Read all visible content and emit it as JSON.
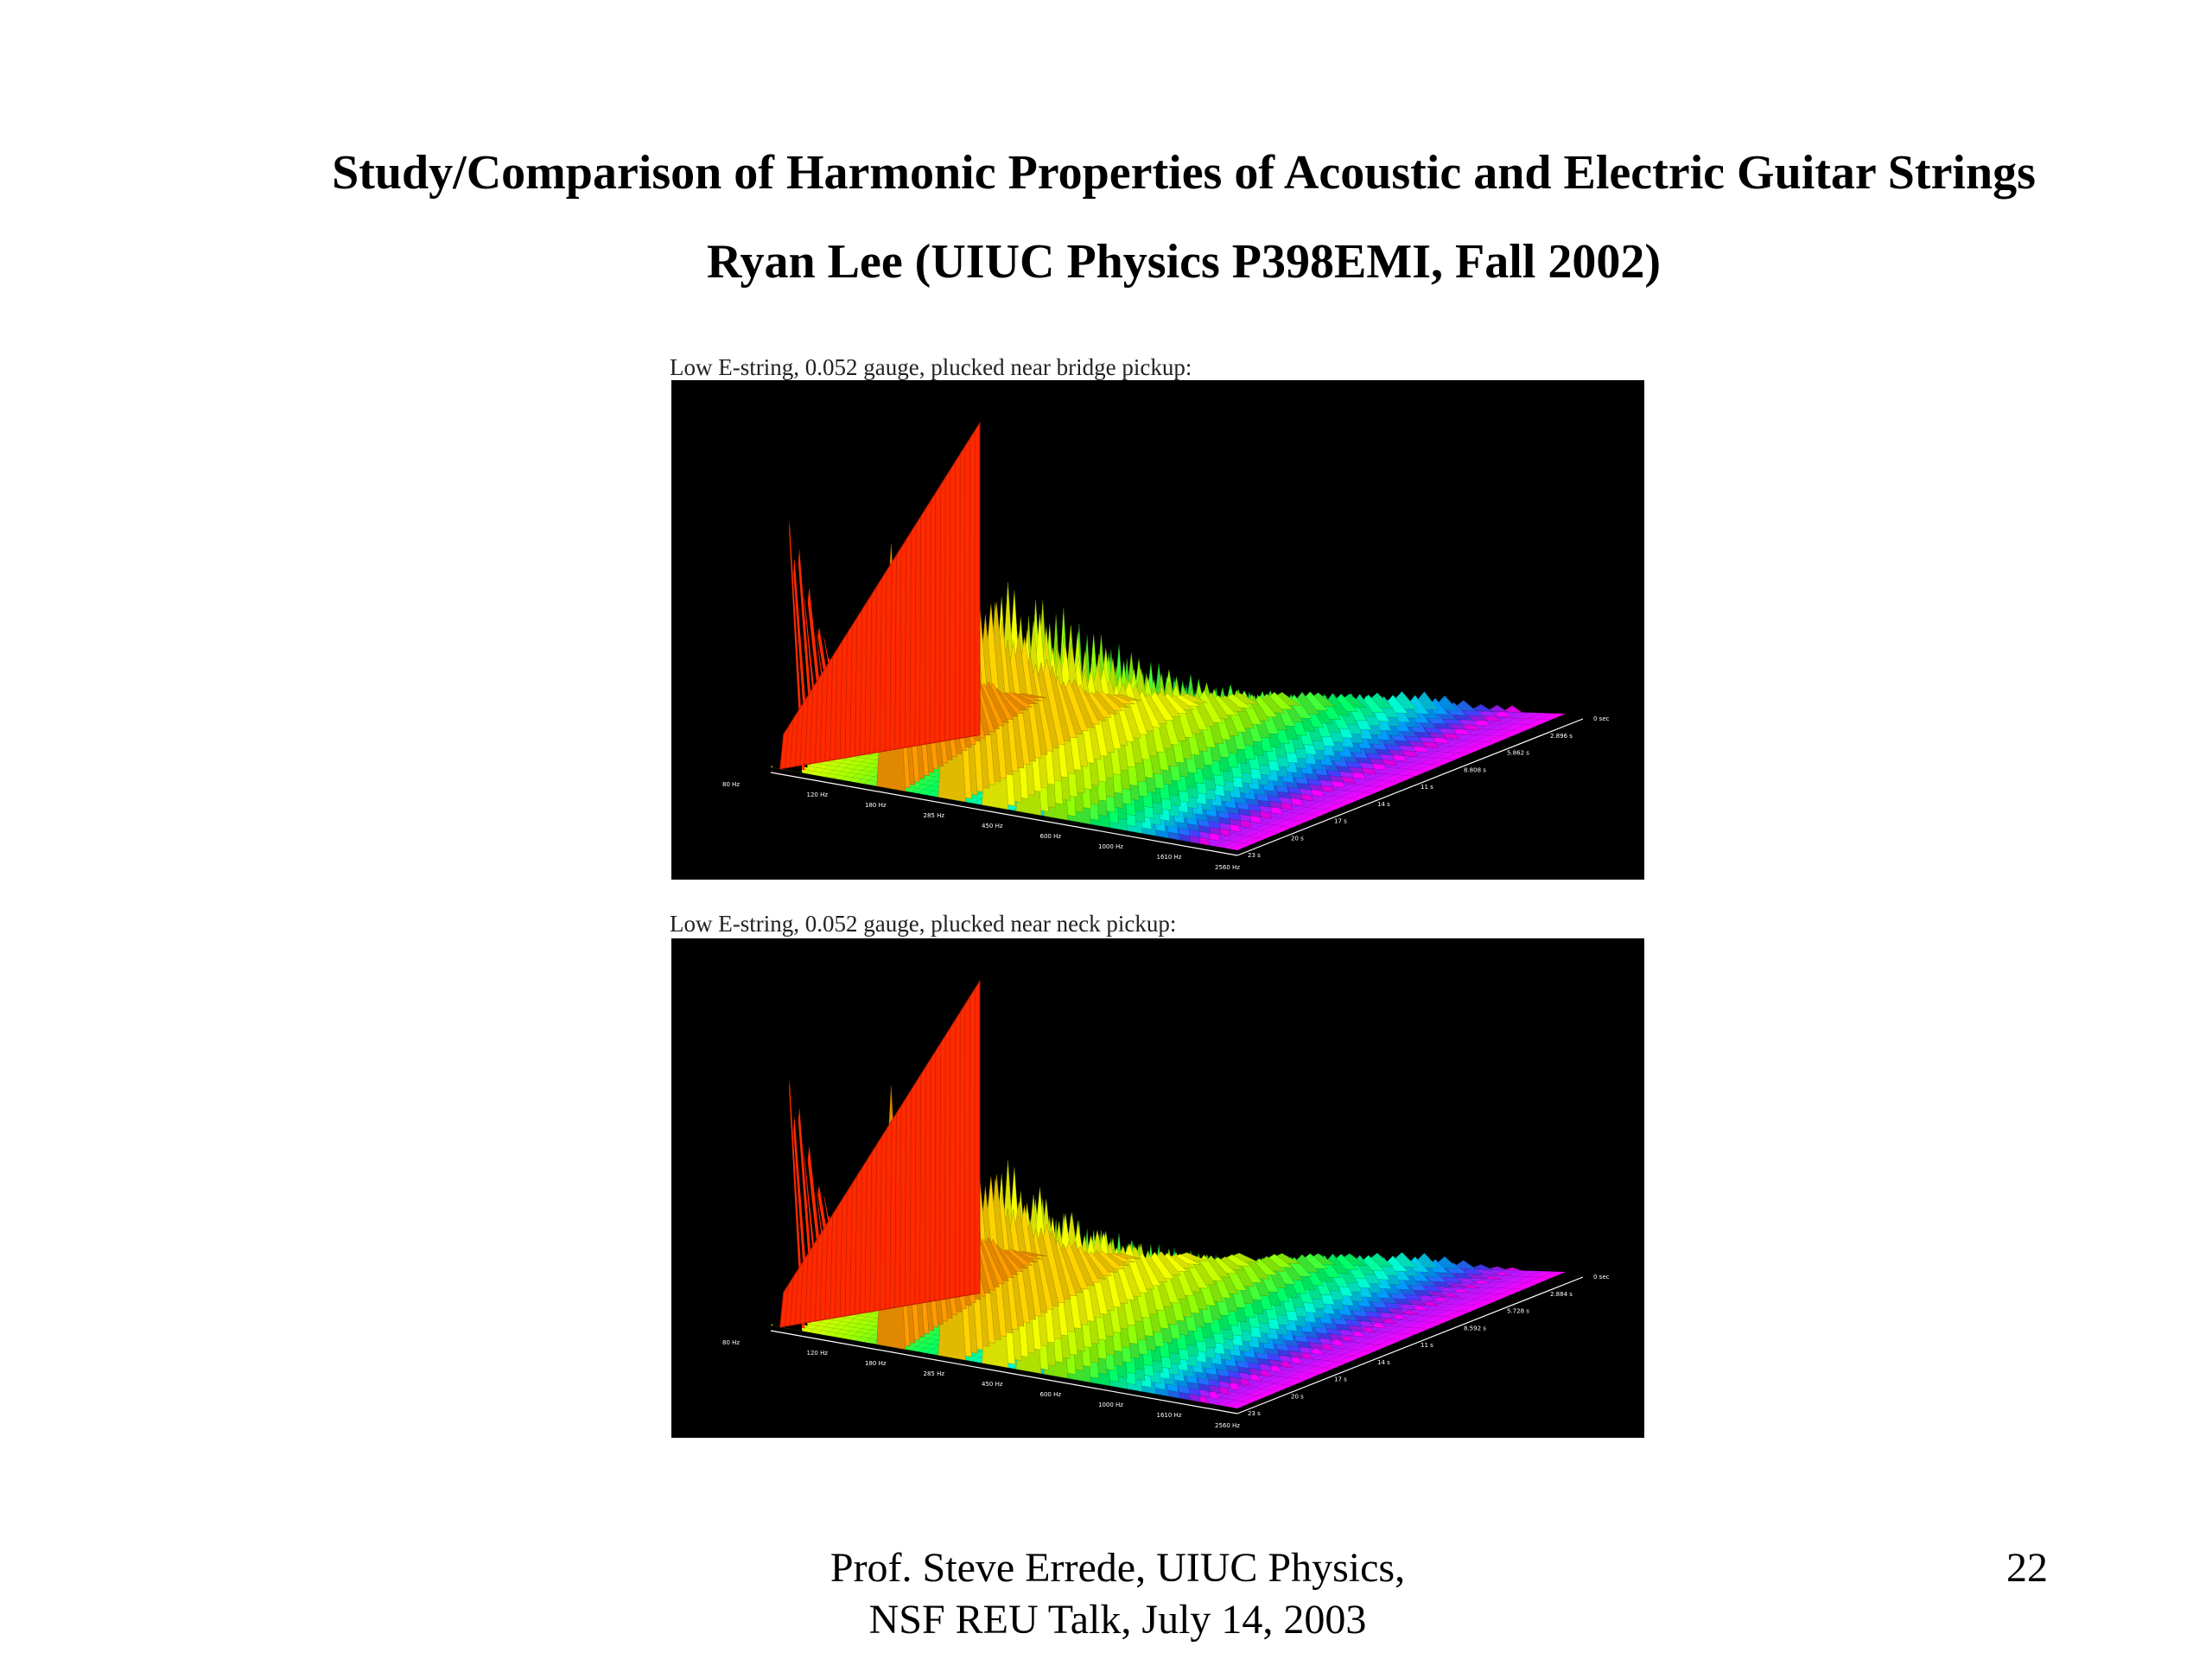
{
  "slide": {
    "title": "Study/Comparison of Harmonic Properties of Acoustic and Electric Guitar Strings",
    "subtitle": "Ryan Lee (UIUC Physics P398EMI, Fall 2002)",
    "footer_line1": "Prof. Steve Errede, UIUC Physics,",
    "footer_line2": "NSF REU Talk, July 14, 2003",
    "page_number": "22"
  },
  "figures": [
    {
      "caption": "Low E-string, 0.052 gauge, plucked near bridge pickup:",
      "freq_ticks": [
        "80 Hz",
        "120 Hz",
        "180 Hz",
        "285 Hz",
        "450 Hz",
        "600 Hz",
        "1000 Hz",
        "1610 Hz",
        "2560 Hz"
      ],
      "time_ticks": [
        "0 sec",
        "2.896 s",
        "5.862 s",
        "8.808 s",
        "11 s",
        "14 s",
        "17 s",
        "20 s",
        "23 s"
      ]
    },
    {
      "caption": "Low E-string, 0.052 gauge, plucked near neck pickup:",
      "freq_ticks": [
        "80 Hz",
        "120 Hz",
        "180 Hz",
        "285 Hz",
        "450 Hz",
        "600 Hz",
        "1000 Hz",
        "1610 Hz",
        "2560 Hz"
      ],
      "time_ticks": [
        "0 sec",
        "2.884 s",
        "5.728 s",
        "8.592 s",
        "11 s",
        "14 s",
        "17 s",
        "20 s",
        "23 s"
      ]
    }
  ],
  "chart_data": [
    {
      "type": "area",
      "title": "Low E-string, 0.052 gauge, plucked near bridge pickup:",
      "x_axis": "frequency (log scale)",
      "x_ticks": [
        "80 Hz",
        "120 Hz",
        "180 Hz",
        "285 Hz",
        "450 Hz",
        "600 Hz",
        "1000 Hz",
        "1610 Hz",
        "2560 Hz"
      ],
      "y_axis": "time",
      "y_ticks": [
        "0 sec",
        "2.896 s",
        "5.862 s",
        "8.808 s",
        "11 s",
        "14 s",
        "17 s",
        "20 s",
        "23 s"
      ],
      "colormap": [
        "#ff2a00",
        "#ff8c00",
        "#ffff00",
        "#a0ff00",
        "#00ff60",
        "#00ffd0",
        "#00a0ff",
        "#4040ff",
        "#ff00ff"
      ],
      "background": "#000000",
      "harmonic_peak_heights": [
        1.0,
        0.92,
        0.96,
        0.88,
        0.82,
        0.78,
        0.72,
        0.62,
        0.58,
        0.52,
        0.44,
        0.32,
        0.22,
        0.14,
        0.12,
        0.1
      ]
    },
    {
      "type": "area",
      "title": "Low E-string, 0.052 gauge, plucked near neck pickup:",
      "x_axis": "frequency (log scale)",
      "x_ticks": [
        "80 Hz",
        "120 Hz",
        "180 Hz",
        "285 Hz",
        "450 Hz",
        "600 Hz",
        "1000 Hz",
        "1610 Hz",
        "2560 Hz"
      ],
      "y_axis": "time",
      "y_ticks": [
        "0 sec",
        "2.884 s",
        "5.728 s",
        "8.592 s",
        "11 s",
        "14 s",
        "17 s",
        "20 s",
        "23 s"
      ],
      "colormap": [
        "#ff2a00",
        "#ff8c00",
        "#ffff00",
        "#a0ff00",
        "#00ff60",
        "#00ffd0",
        "#00a0ff",
        "#4040ff",
        "#ff00ff"
      ],
      "background": "#000000",
      "harmonic_peak_heights": [
        1.0,
        0.98,
        0.88,
        0.8,
        0.66,
        0.6,
        0.58,
        0.55,
        0.5,
        0.44,
        0.36,
        0.26,
        0.18,
        0.1,
        0.06,
        0.04
      ]
    }
  ]
}
